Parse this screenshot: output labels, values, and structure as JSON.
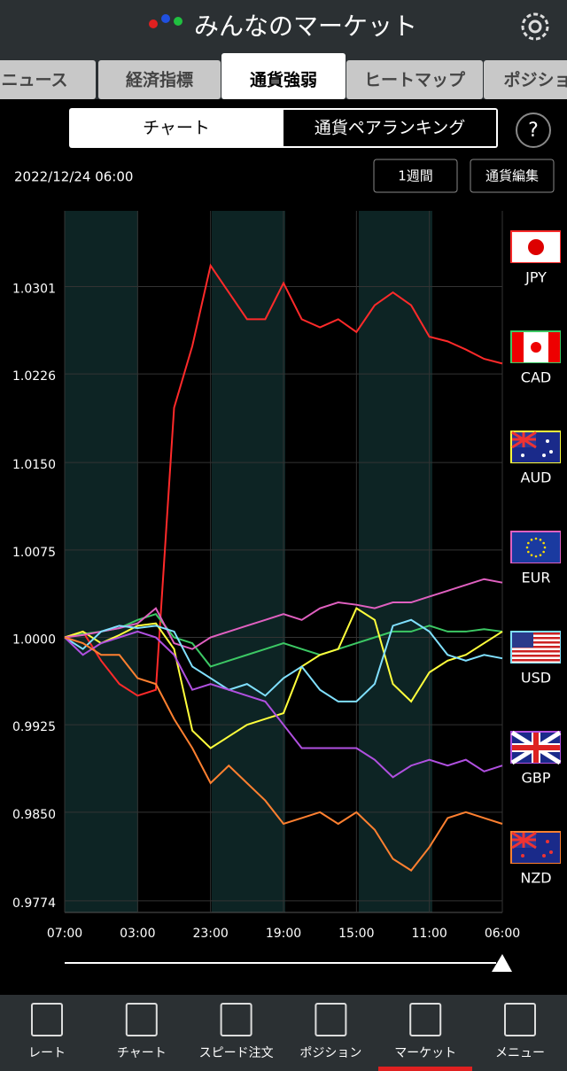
{
  "header": {
    "title": "みんなのマーケット"
  },
  "tabs": [
    "ニュース",
    "経済指標",
    "通貨強弱",
    "ヒートマップ",
    "ポジション"
  ],
  "segments": [
    "チャート",
    "通貨ペアランキング"
  ],
  "help": "?",
  "date": "2022/12/24 06:00",
  "buttons": [
    "1週間",
    "通貨編集"
  ],
  "chart_data": {
    "type": "line",
    "categories": [
      "07:00",
      null,
      null,
      null,
      "03:00",
      null,
      null,
      null,
      "23:00",
      null,
      null,
      null,
      "19:00",
      null,
      null,
      null,
      "15:00",
      null,
      null,
      null,
      "11:00",
      null,
      null,
      null,
      "06:00"
    ],
    "series": [
      {
        "name": "JPY",
        "color": "#ff2a2a",
        "values": [
          1.0,
          1.0005,
          0.998,
          0.996,
          0.995,
          0.9955,
          1.0197,
          1.025,
          1.0319,
          1.0296,
          1.0273,
          1.0273,
          1.0304,
          1.0273,
          1.0266,
          1.0273,
          1.0262,
          1.0285,
          1.0296,
          1.0285,
          1.0258,
          1.0254,
          1.0247,
          1.0239,
          1.0235
        ]
      },
      {
        "name": "CAD",
        "color": "#3cc864",
        "values": [
          1.0,
          1.0003,
          1.0005,
          1.0008,
          1.0015,
          1.002,
          1.0,
          0.9995,
          0.9975,
          0.998,
          0.9985,
          0.999,
          0.9995,
          0.999,
          0.9985,
          0.999,
          0.9995,
          1.0,
          1.0005,
          1.0005,
          1.001,
          1.0005,
          1.0005,
          1.0007,
          1.0005
        ]
      },
      {
        "name": "AUD",
        "color": "#ffff3c",
        "values": [
          1.0,
          1.0005,
          0.9995,
          1.0002,
          1.001,
          1.0012,
          0.999,
          0.992,
          0.9905,
          0.9915,
          0.9925,
          0.993,
          0.9935,
          0.9975,
          0.9985,
          0.999,
          1.0025,
          1.0015,
          0.996,
          0.9945,
          0.997,
          0.998,
          0.9985,
          0.9995,
          1.0005
        ]
      },
      {
        "name": "EUR",
        "color": "#e060c0",
        "values": [
          1.0,
          1.0002,
          1.0005,
          1.0008,
          1.0012,
          1.0025,
          0.9995,
          0.999,
          1.0,
          1.0005,
          1.001,
          1.0015,
          1.002,
          1.0015,
          1.0025,
          1.003,
          1.0028,
          1.0025,
          1.003,
          1.003,
          1.0035,
          1.004,
          1.0045,
          1.005,
          1.0047
        ]
      },
      {
        "name": "USD",
        "color": "#80e0ff",
        "values": [
          1.0,
          0.999,
          1.0005,
          1.001,
          1.0008,
          1.001,
          1.0005,
          0.9975,
          0.9965,
          0.9955,
          0.996,
          0.995,
          0.9965,
          0.9975,
          0.9955,
          0.9945,
          0.9945,
          0.996,
          1.001,
          1.0015,
          1.0005,
          0.9985,
          0.998,
          0.9985,
          0.9982
        ]
      },
      {
        "name": "GBP",
        "color": "#b050e0",
        "values": [
          1.0,
          0.9985,
          0.9995,
          1.0,
          1.0005,
          1.0,
          0.9985,
          0.9955,
          0.996,
          0.9955,
          0.995,
          0.9945,
          0.9925,
          0.9905,
          0.9905,
          0.9905,
          0.9905,
          0.9895,
          0.988,
          0.989,
          0.9895,
          0.989,
          0.9895,
          0.9885,
          0.989
        ]
      },
      {
        "name": "NZD",
        "color": "#ff8030",
        "values": [
          1.0,
          0.9995,
          0.9985,
          0.9985,
          0.9965,
          0.996,
          0.993,
          0.9905,
          0.9875,
          0.989,
          0.9875,
          0.986,
          0.984,
          0.9845,
          0.985,
          0.984,
          0.985,
          0.9835,
          0.981,
          0.98,
          0.982,
          0.9845,
          0.985,
          0.9845,
          0.984
        ]
      }
    ],
    "ylim": [
      0.9764,
      1.0366
    ],
    "yticks": [
      0.9774,
      {
        "value": 0.985,
        "label": "0.9850"
      },
      0.9925,
      {
        "value": 1,
        "label": "1.0000"
      },
      1.0075,
      {
        "value": 1.015,
        "label": "1.0150"
      },
      1.0226,
      1.0301
    ],
    "grid": true
  },
  "nav": [
    "レート",
    "チャート",
    "スピード注文",
    "ポジション",
    "マーケット",
    "メニュー"
  ]
}
